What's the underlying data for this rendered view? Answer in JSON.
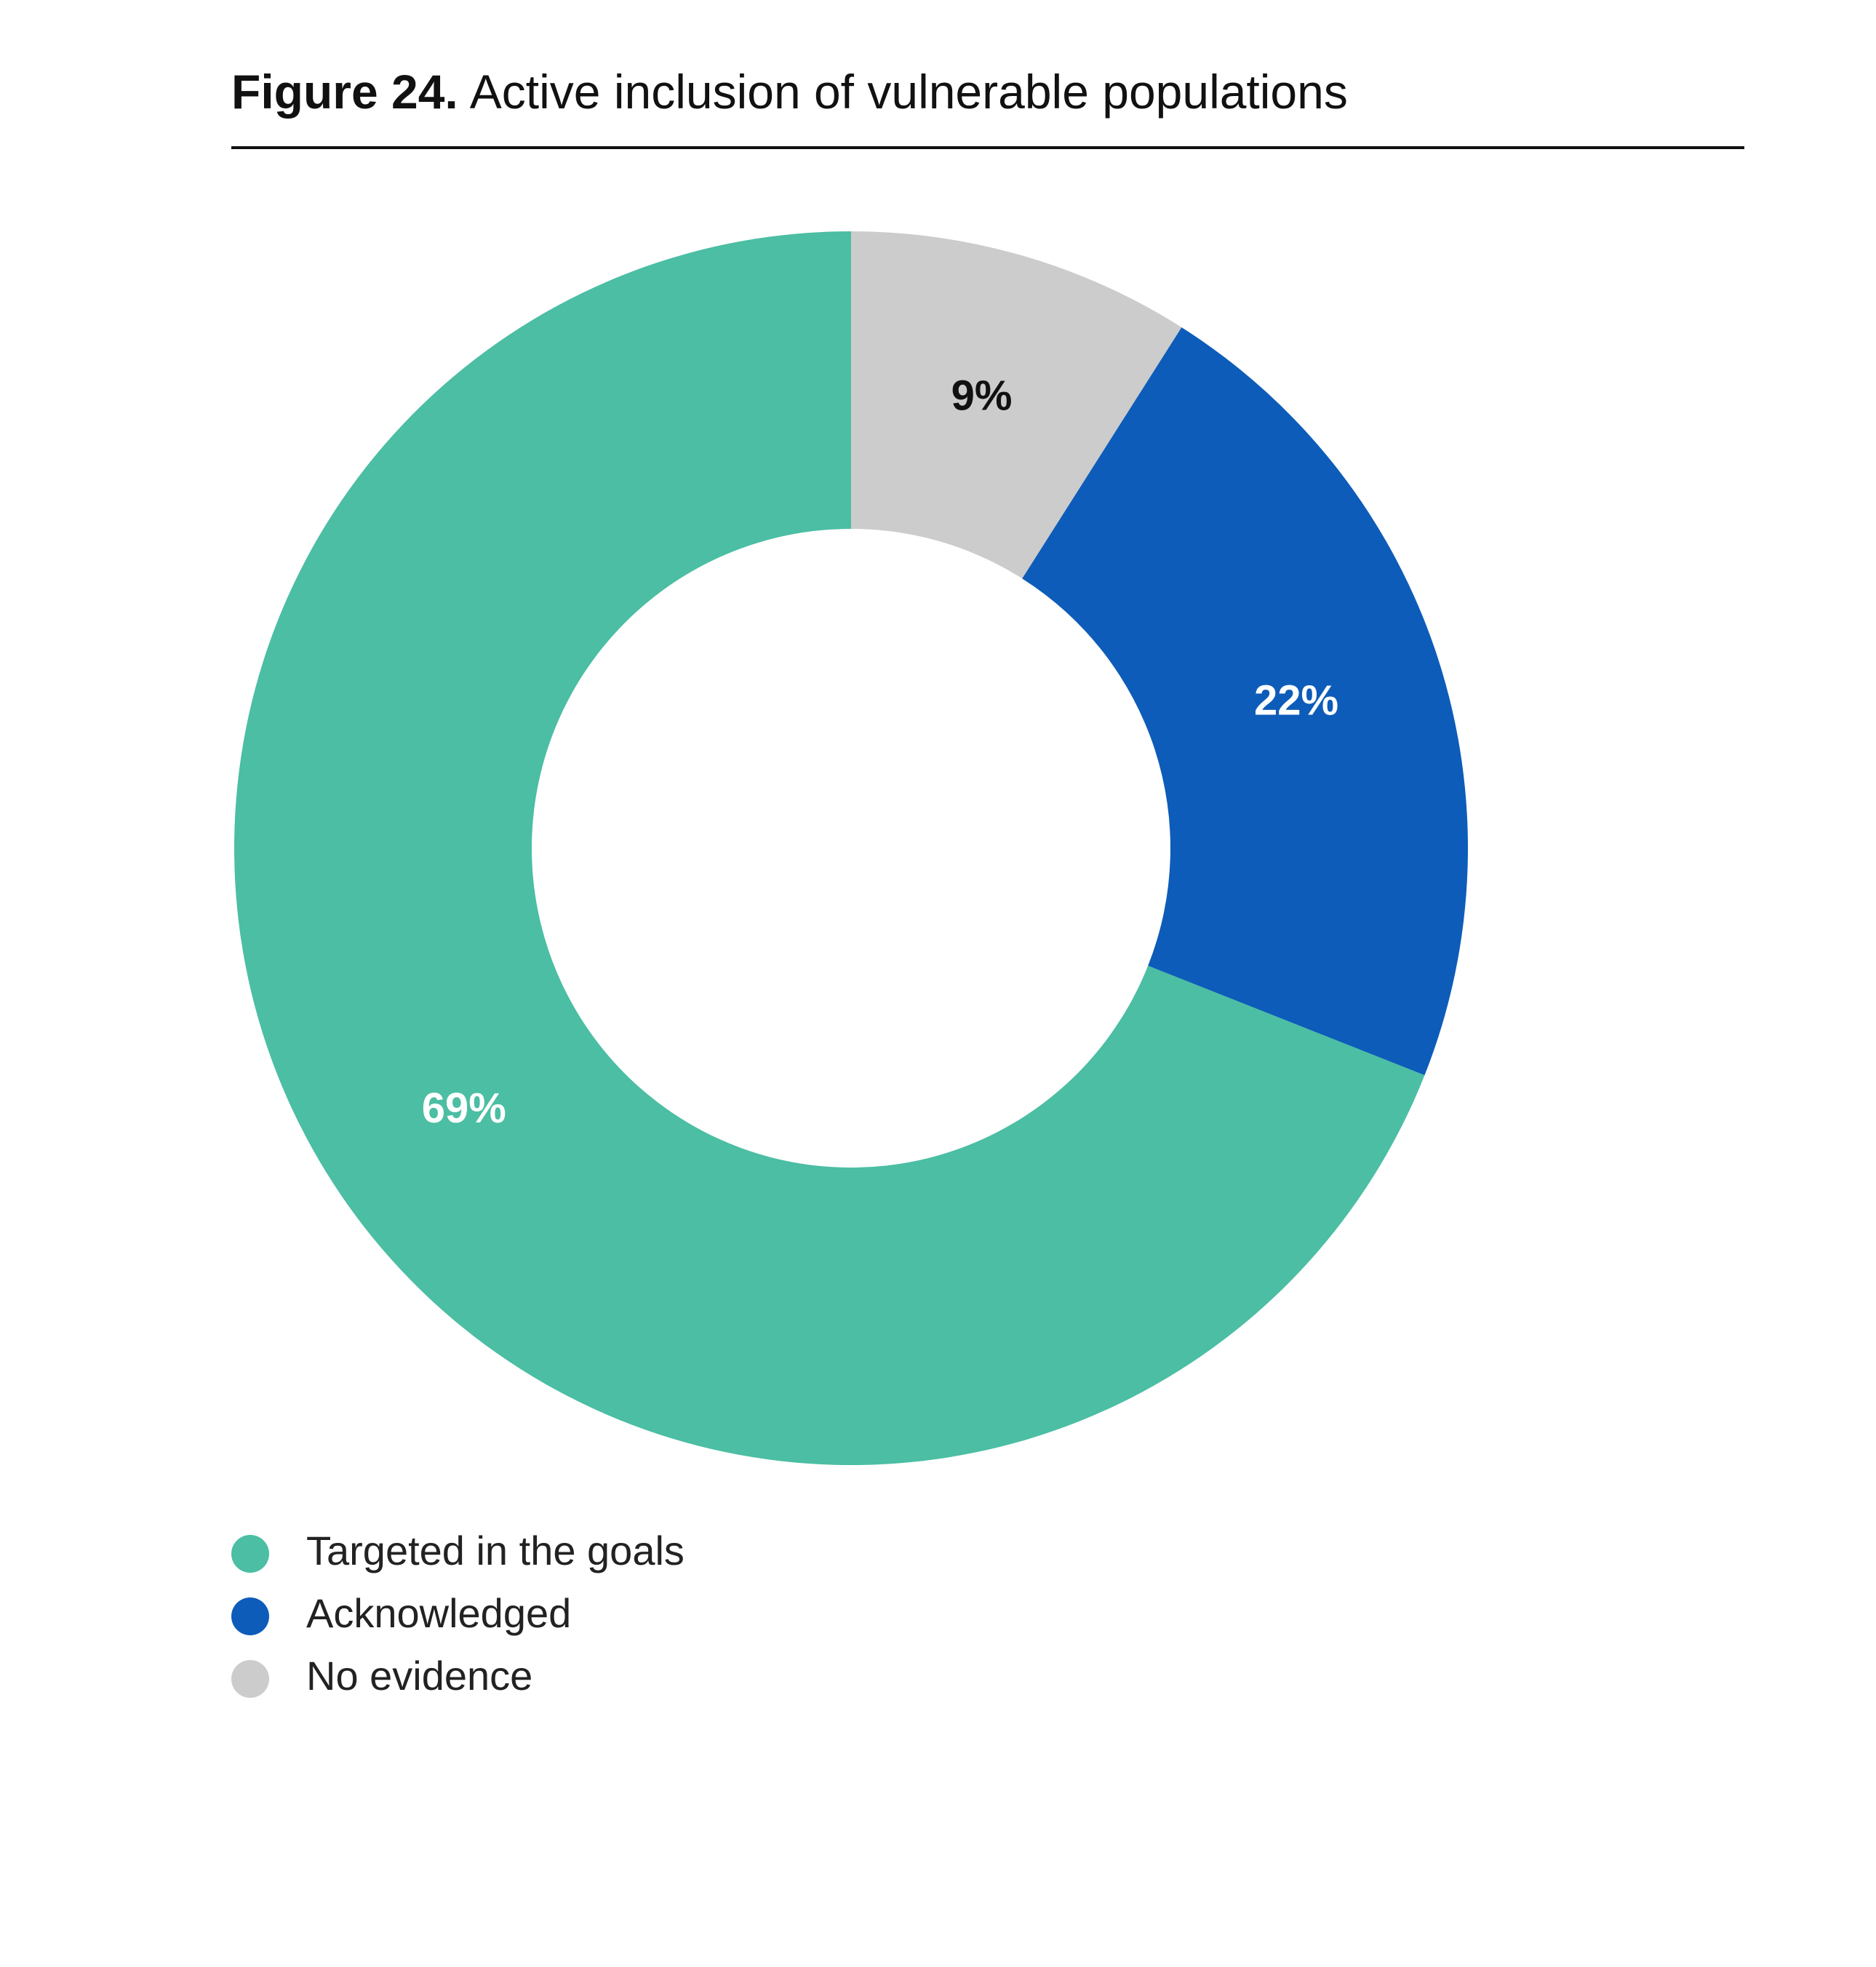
{
  "chart_data": {
    "type": "donut",
    "figure_label": "Figure 24.",
    "title": "Active inclusion of vulnerable populations",
    "categories": [
      "Targeted in the goals",
      "Acknowledged",
      "No evidence"
    ],
    "values": [
      69,
      22,
      9
    ],
    "value_labels": [
      "69%",
      "22%",
      "9%"
    ],
    "colors": [
      "#4bbea3",
      "#0d5cb9",
      "#cccccc"
    ],
    "label_colors": [
      "#ffffff",
      "#ffffff",
      "#111111"
    ]
  }
}
